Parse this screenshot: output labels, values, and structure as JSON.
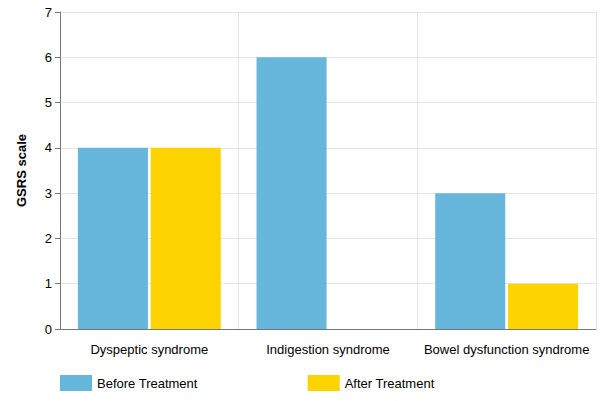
{
  "chart_data": {
    "type": "bar",
    "categories": [
      "Dyspeptic syndrome",
      "Indigestion syndrome",
      "Bowel dysfunction syndrome"
    ],
    "series": [
      {
        "name": "Before Treatment",
        "color": "#67b7dc",
        "values": [
          4,
          6,
          3
        ]
      },
      {
        "name": "After Treatment",
        "color": "#fdd400",
        "values": [
          4,
          0,
          1
        ]
      }
    ],
    "ylabel": "GSRS scale",
    "ylim": [
      0,
      7
    ],
    "yticks": [
      0,
      1,
      2,
      3,
      4,
      5,
      6,
      7
    ],
    "grid": true,
    "legend": "bottom"
  }
}
